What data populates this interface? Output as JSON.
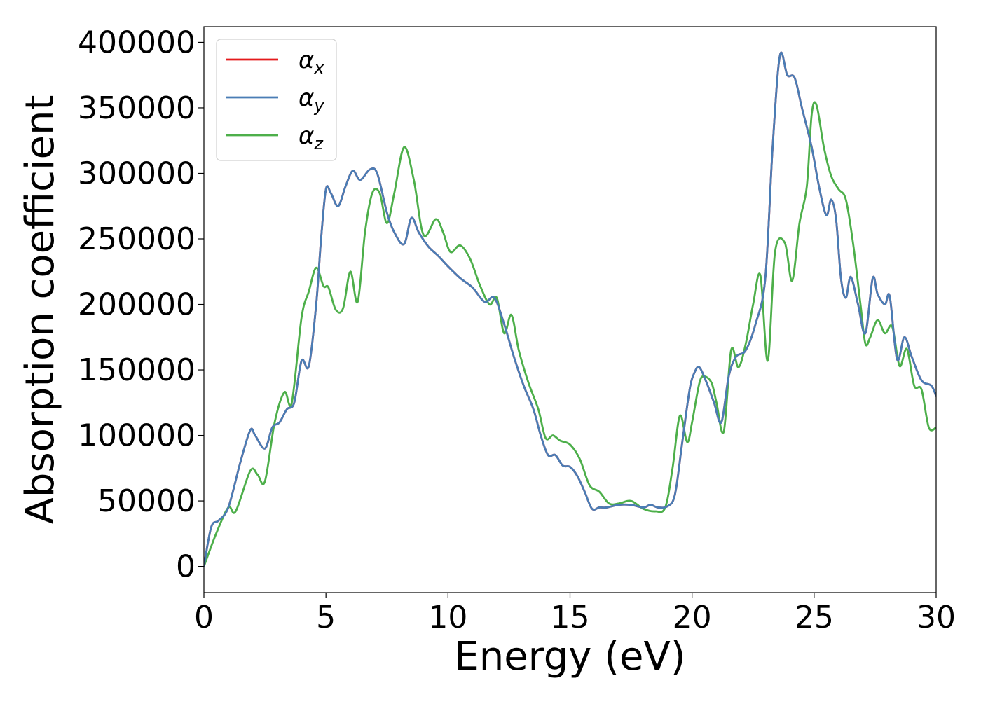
{
  "chart_data": {
    "type": "line",
    "xlabel": "Energy (eV)",
    "ylabel": "Absorption coefficient",
    "xlim": [
      0,
      30
    ],
    "ylim": [
      -20000,
      412000
    ],
    "xticks": [
      0,
      5,
      10,
      15,
      20,
      25,
      30
    ],
    "yticks": [
      0,
      50000,
      100000,
      150000,
      200000,
      250000,
      300000,
      350000,
      400000
    ],
    "grid": false,
    "legend_position": "top-left",
    "series": [
      {
        "name": "α",
        "subscript": "x",
        "color": "#e41a1c",
        "x": [
          0,
          0.3,
          0.6,
          1.0,
          1.5,
          1.9,
          2.1,
          2.5,
          2.8,
          3.1,
          3.4,
          3.7,
          4.0,
          4.3,
          4.6,
          4.8,
          5.0,
          5.2,
          5.5,
          5.8,
          6.1,
          6.4,
          6.8,
          7.1,
          7.5,
          7.8,
          8.2,
          8.5,
          8.8,
          9.2,
          9.6,
          10.0,
          10.5,
          11.0,
          11.5,
          11.9,
          12.3,
          12.7,
          13.1,
          13.5,
          13.8,
          14.1,
          14.4,
          14.7,
          15.0,
          15.3,
          15.6,
          15.9,
          16.2,
          16.5,
          17.0,
          17.5,
          18.0,
          18.3,
          18.6,
          19.0,
          19.3,
          19.6,
          19.9,
          20.1,
          20.3,
          20.6,
          20.9,
          21.2,
          21.5,
          21.8,
          22.2,
          22.6,
          23.0,
          23.3,
          23.6,
          23.9,
          24.2,
          24.5,
          24.9,
          25.2,
          25.5,
          25.7,
          25.9,
          26.1,
          26.3,
          26.5,
          26.8,
          27.1,
          27.4,
          27.6,
          27.9,
          28.1,
          28.4,
          28.7,
          29.0,
          29.4,
          29.8,
          30.0
        ],
        "y": [
          0,
          30000,
          35000,
          45000,
          80000,
          104000,
          100000,
          90000,
          106000,
          110000,
          120000,
          125000,
          157000,
          153000,
          200000,
          250000,
          288000,
          285000,
          275000,
          290000,
          302000,
          295000,
          303000,
          300000,
          270000,
          255000,
          246000,
          266000,
          255000,
          244000,
          237000,
          229000,
          220000,
          213000,
          202000,
          205000,
          185000,
          160000,
          138000,
          120000,
          100000,
          85000,
          85000,
          77000,
          76000,
          69000,
          57000,
          44000,
          45000,
          45000,
          47000,
          47000,
          45000,
          47000,
          45000,
          46000,
          55000,
          95000,
          135000,
          148000,
          152000,
          140000,
          125000,
          110000,
          145000,
          160000,
          165000,
          185000,
          220000,
          320000,
          390000,
          375000,
          373000,
          350000,
          320000,
          290000,
          268000,
          280000,
          265000,
          220000,
          205000,
          221000,
          200000,
          178000,
          220000,
          208000,
          200000,
          206000,
          158000,
          175000,
          160000,
          142000,
          138000,
          130000
        ]
      },
      {
        "name": "α",
        "subscript": "y",
        "color": "#4a7db5",
        "x": [
          0,
          0.3,
          0.6,
          1.0,
          1.5,
          1.9,
          2.1,
          2.5,
          2.8,
          3.1,
          3.4,
          3.7,
          4.0,
          4.3,
          4.6,
          4.8,
          5.0,
          5.2,
          5.5,
          5.8,
          6.1,
          6.4,
          6.8,
          7.1,
          7.5,
          7.8,
          8.2,
          8.5,
          8.8,
          9.2,
          9.6,
          10.0,
          10.5,
          11.0,
          11.5,
          11.9,
          12.3,
          12.7,
          13.1,
          13.5,
          13.8,
          14.1,
          14.4,
          14.7,
          15.0,
          15.3,
          15.6,
          15.9,
          16.2,
          16.5,
          17.0,
          17.5,
          18.0,
          18.3,
          18.6,
          19.0,
          19.3,
          19.6,
          19.9,
          20.1,
          20.3,
          20.6,
          20.9,
          21.2,
          21.5,
          21.8,
          22.2,
          22.6,
          23.0,
          23.3,
          23.6,
          23.9,
          24.2,
          24.5,
          24.9,
          25.2,
          25.5,
          25.7,
          25.9,
          26.1,
          26.3,
          26.5,
          26.8,
          27.1,
          27.4,
          27.6,
          27.9,
          28.1,
          28.4,
          28.7,
          29.0,
          29.4,
          29.8,
          30.0
        ],
        "y": [
          0,
          30000,
          35000,
          45000,
          80000,
          104000,
          100000,
          90000,
          106000,
          110000,
          120000,
          125000,
          157000,
          153000,
          200000,
          250000,
          288000,
          285000,
          275000,
          290000,
          302000,
          295000,
          303000,
          300000,
          270000,
          255000,
          246000,
          266000,
          255000,
          244000,
          237000,
          229000,
          220000,
          213000,
          202000,
          205000,
          185000,
          160000,
          138000,
          120000,
          100000,
          85000,
          85000,
          77000,
          76000,
          69000,
          57000,
          44000,
          45000,
          45000,
          47000,
          47000,
          45000,
          47000,
          45000,
          46000,
          55000,
          95000,
          135000,
          148000,
          152000,
          140000,
          125000,
          110000,
          145000,
          160000,
          165000,
          185000,
          220000,
          320000,
          390000,
          375000,
          373000,
          350000,
          320000,
          290000,
          268000,
          280000,
          265000,
          220000,
          205000,
          221000,
          200000,
          178000,
          220000,
          208000,
          200000,
          206000,
          158000,
          175000,
          160000,
          142000,
          138000,
          130000
        ]
      },
      {
        "name": "α",
        "subscript": "z",
        "color": "#4daf4a",
        "x": [
          0,
          0.5,
          1.0,
          1.3,
          1.9,
          2.2,
          2.5,
          2.9,
          3.3,
          3.6,
          4.0,
          4.3,
          4.6,
          4.9,
          5.1,
          5.4,
          5.7,
          6.0,
          6.3,
          6.6,
          6.9,
          7.2,
          7.5,
          7.8,
          8.2,
          8.6,
          9.0,
          9.5,
          9.8,
          10.1,
          10.5,
          10.9,
          11.3,
          11.7,
          12.0,
          12.3,
          12.6,
          12.9,
          13.3,
          13.7,
          14.0,
          14.3,
          14.6,
          15.0,
          15.4,
          15.8,
          16.2,
          16.6,
          17.0,
          17.5,
          18.0,
          18.5,
          18.9,
          19.2,
          19.5,
          19.8,
          20.0,
          20.3,
          20.5,
          20.8,
          21.0,
          21.3,
          21.6,
          21.9,
          22.2,
          22.5,
          22.8,
          23.1,
          23.4,
          23.8,
          24.1,
          24.4,
          24.7,
          24.9,
          25.1,
          25.4,
          25.7,
          26.0,
          26.3,
          26.6,
          26.9,
          27.1,
          27.3,
          27.6,
          27.9,
          28.2,
          28.5,
          28.8,
          29.1,
          29.4,
          29.7,
          30.0
        ],
        "y": [
          0,
          25000,
          45000,
          42000,
          73000,
          70000,
          65000,
          110000,
          133000,
          125000,
          190000,
          210000,
          228000,
          214000,
          213000,
          196000,
          197000,
          225000,
          202000,
          255000,
          285000,
          285000,
          262000,
          285000,
          320000,
          295000,
          253000,
          265000,
          255000,
          240000,
          245000,
          235000,
          215000,
          200000,
          205000,
          178000,
          192000,
          165000,
          140000,
          120000,
          98000,
          100000,
          96000,
          93000,
          82000,
          62000,
          57000,
          48000,
          48000,
          50000,
          44000,
          42000,
          45000,
          75000,
          115000,
          95000,
          110000,
          140000,
          145000,
          140000,
          125000,
          103000,
          165000,
          152000,
          170000,
          200000,
          222000,
          157000,
          240000,
          247000,
          218000,
          262000,
          290000,
          345000,
          352000,
          320000,
          298000,
          288000,
          280000,
          246000,
          200000,
          170000,
          175000,
          188000,
          178000,
          183000,
          153000,
          166000,
          138000,
          135000,
          106000,
          106000
        ]
      }
    ]
  }
}
